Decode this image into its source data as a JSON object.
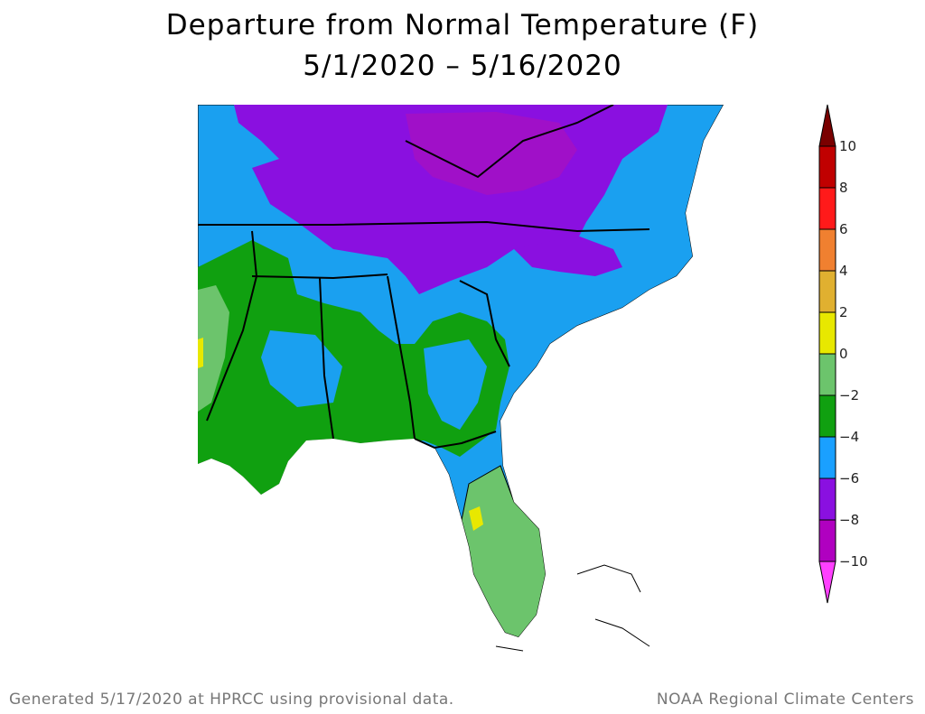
{
  "title": "Departure from Normal Temperature (F)",
  "subtitle": "5/1/2020 – 5/16/2020",
  "footer_left": "Generated 5/17/2020 at HPRCC using provisional data.",
  "footer_right": "NOAA Regional Climate Centers",
  "legend": {
    "labels": [
      "10",
      "8",
      "6",
      "4",
      "2",
      "0",
      "−2",
      "−4",
      "−6",
      "−8",
      "−10"
    ],
    "colors": [
      "#7a0000",
      "#c00000",
      "#ff1a1a",
      "#f08030",
      "#e0b030",
      "#e8e800",
      "#6cc46c",
      "#10a010",
      "#1aa0ff",
      "#8a10e0",
      "#b000c0",
      "#ff40ff"
    ]
  },
  "map_colors": {
    "below_minus8": "#a010c8",
    "minus8_to_minus6": "#8a10e0",
    "minus6_to_minus4": "#1aa0f0",
    "minus4_to_minus2": "#10a010",
    "minus2_to_0": "#6cc46c",
    "zero_to_2": "#e8e800",
    "water": "#ffffff"
  }
}
